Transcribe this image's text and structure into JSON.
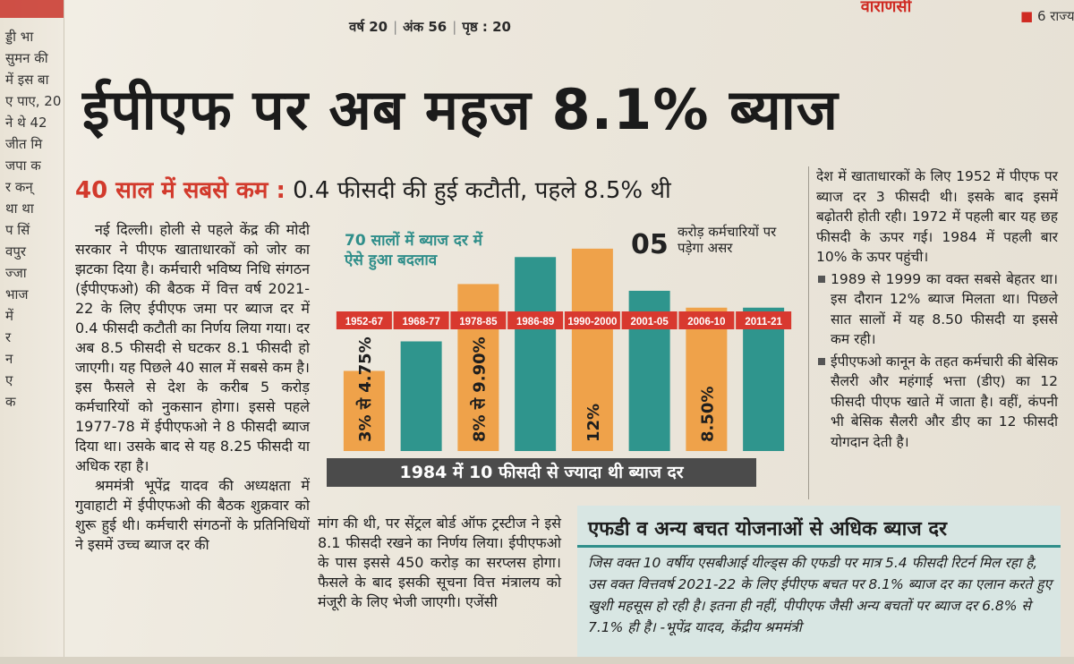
{
  "masthead": {
    "year": "वर्ष 20",
    "issue": "अंक 56",
    "page": "पृष्ठ : 20",
    "city": "वाराणसी",
    "states": "6 राज्य"
  },
  "left_clip": [
    "ड्डी भा",
    "सुमन की",
    "में इस बा",
    "ए पाए, 20",
    "ने थे 42",
    "जीत मि",
    "जपा क",
    "र कन्",
    "था था",
    "प सिं",
    "वपुर",
    "ज्जा",
    "भाज",
    "में",
    "र",
    "न",
    "ए",
    "क"
  ],
  "headline": "ईपीएफ पर अब महज 8.1% ब्याज",
  "subhead": {
    "lead": "40 साल में सबसे कम :",
    "rest": " 0.4 फीसदी की हुई कटौती, पहले 8.5% थी"
  },
  "article_left": [
    "नई दिल्ली। होली से पहले केंद्र की मोदी सरकार ने पीएफ खाताधारकों को जोर का झटका दिया है। कर्मचारी भविष्य निधि संगठन (ईपीएफओ) की बैठक में वित्त वर्ष 2021-22 के लिए ईपीएफ जमा पर ब्याज दर में 0.4 फीसदी कटौती का निर्णय लिया गया। दर अब 8.5 फीसदी से घटकर 8.1 फीसदी हो जाएगी। यह पिछले 40 साल में सबसे कम है। इस फैसले से देश के करीब 5 करोड़ कर्मचारियों को नुकसान होगा। इससे पहले 1977-78 में ईपीएफओ ने 8 फीसदी ब्याज दिया था। उसके बाद से यह 8.25 फीसदी या अधिक रहा है।",
    "श्रममंत्री भूपेंद्र यादव की अध्यक्षता में गुवाहाटी में ईपीएफओ की बैठक शुक्रवार को शुरू हुई थी। कर्मचारी संगठनों के प्रतिनिधियों ने इसमें उच्च ब्याज दर की"
  ],
  "article_mid": "मांग की थी, पर सेंट्रल बोर्ड ऑफ ट्रस्टीज ने इसे 8.1 फीसदी रखने का निर्णय लिया। ईपीएफओ के पास इससे 450 करोड़ का सरप्लस होगा। फैसले के बाद इसकी सूचना वित्त मंत्रालय को मंजूरी के लिए भेजी जाएगी। एजेंसी",
  "article_right": {
    "intro": "देश में खाताधारकों के लिए 1952 में पीएफ पर ब्याज दर 3 फीसदी थी। इसके बाद इसमें बढ़ोतरी होती रही। 1972 में पहली बार यह छह फीसदी के ऊपर गई। 1984 में पहली बार 10% के ऊपर पहुंची।",
    "bullet1": "1989 से 1999 का वक्त सबसे बेहतर था। इस दौरान 12% ब्याज मिलता था। पिछले सात सालों में यह 8.50 फीसदी या इससे कम रही।",
    "bullet2": "ईपीएफओ कानून के तहत कर्मचारी की बेसिक सैलरी और महंगाई भत्ता (डीए) का 12 फीसदी पीएफ खाते में जाता है। वहीं, कंपनी भी बेसिक सैलरी और डीए का 12 फीसदी योगदान देती है।"
  },
  "chart_data": {
    "type": "bar",
    "title": "70 सालों में ब्याज दर में ऐसे हुआ बदलाव",
    "callout_number": "05",
    "callout_text": "करोड़ कर्मचारियों पर पड़ेगा असर",
    "footer": "1984 में 10 फीसदी से ज्यादा थी ब्याज दर",
    "categories": [
      "1952-67",
      "1968-77",
      "1978-85",
      "1986-89",
      "1990-2000",
      "2001-05",
      "2006-10",
      "2011-21"
    ],
    "values": [
      4.75,
      6.5,
      9.9,
      11.5,
      12,
      9.5,
      8.5,
      8.5
    ],
    "bar_labels": [
      "3% से 4.75%",
      "",
      "8% से 9.90%",
      "",
      "12%",
      "",
      "8.50%",
      ""
    ],
    "colors": [
      "#efa24a",
      "#2f958d",
      "#efa24a",
      "#2f958d",
      "#efa24a",
      "#2f958d",
      "#efa24a",
      "#2f958d"
    ],
    "ylim": [
      0,
      13
    ]
  },
  "box": {
    "title": "एफडी व अन्य बचत योजनाओं से अधिक ब्याज दर",
    "text": "जिस वक्त 10 वर्षीय एसबीआई यील्ड्स की एफडी पर मात्र 5.4 फीसदी रिटर्न मिल रहा है, उस वक्त वित्तवर्ष 2021-22 के लिए ईपीएफ बचत पर 8.1% ब्याज दर का एलान करते हुए खुशी महसूस हो रही है। इतना ही नहीं, पीपीएफ जैसी अन्य बचतों पर ब्याज दर 6.8% से 7.1% ही है। -भूपेंद्र यादव, केंद्रीय श्रममंत्री"
  }
}
